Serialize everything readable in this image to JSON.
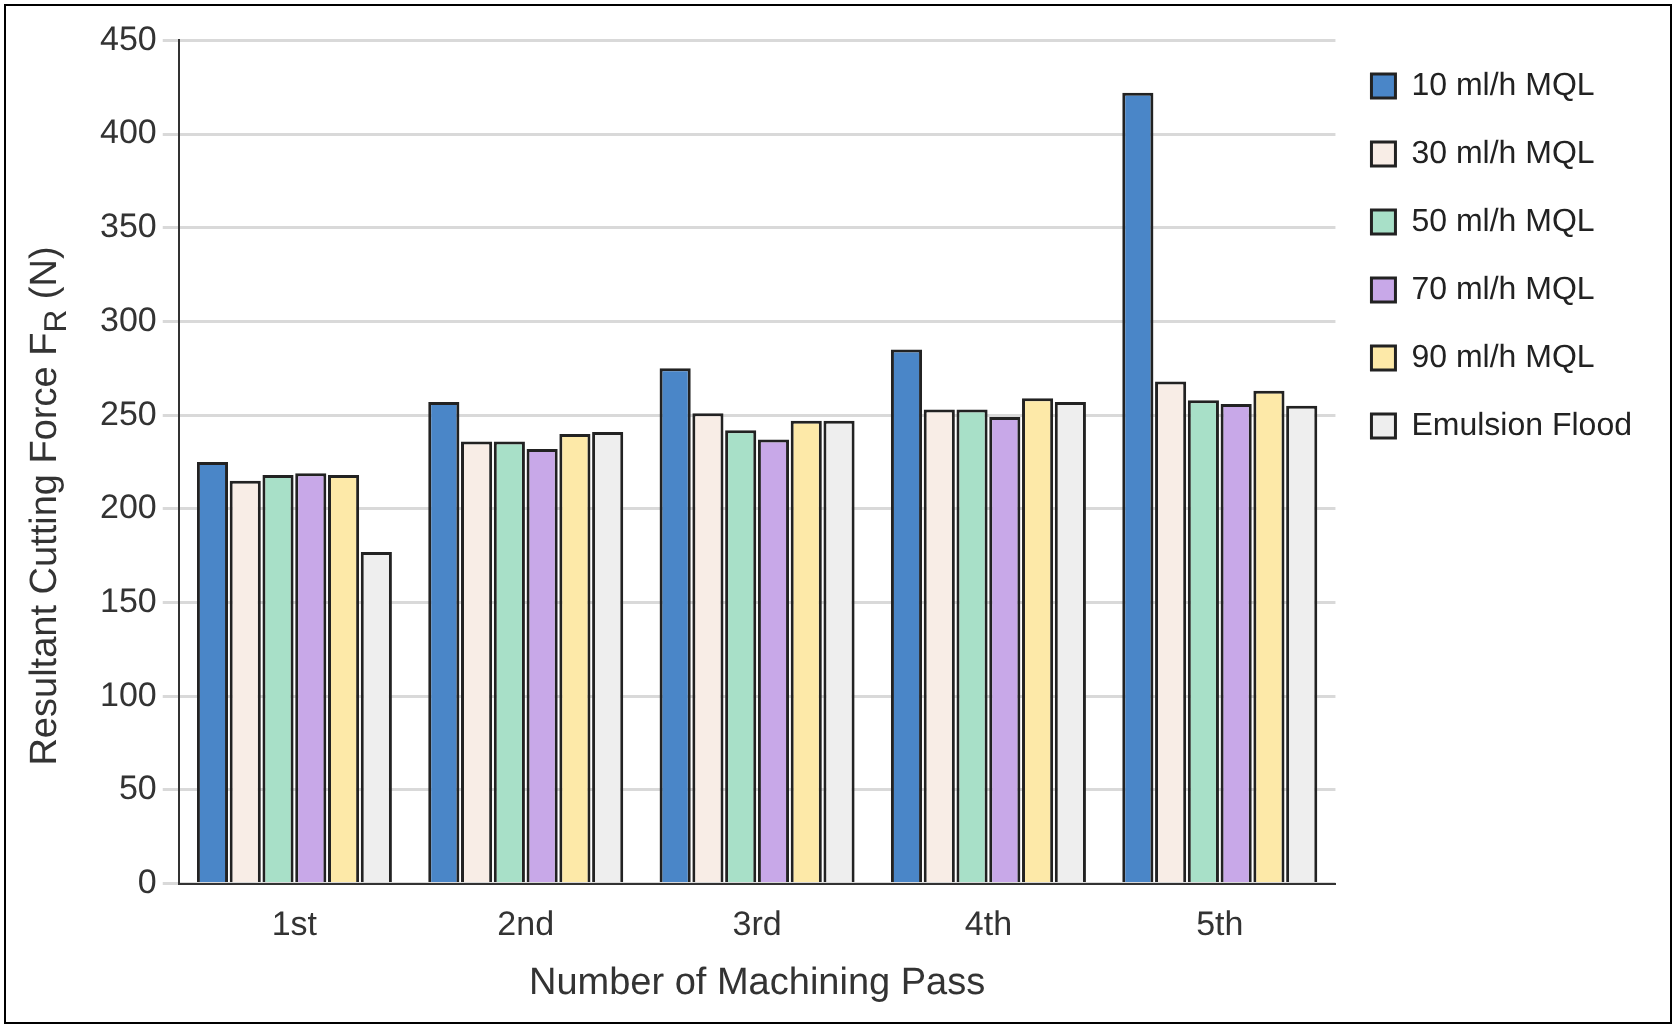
{
  "chart_data": {
    "type": "bar",
    "xlabel": "Number of Machining Pass",
    "ylabel": "Resultant Cutting Force F$_{R}$ (N)",
    "categories": [
      "1st",
      "2nd",
      "3rd",
      "4th",
      "5th"
    ],
    "series": [
      {
        "name": "10 ml/h MQL",
        "color": "#4a86c8",
        "values": [
          225,
          257,
          275,
          285,
          422
        ]
      },
      {
        "name": "30 ml/h MQL",
        "color": "#f8ede6",
        "values": [
          215,
          236,
          251,
          253,
          268
        ]
      },
      {
        "name": "50 ml/h MQL",
        "color": "#a8e0c8",
        "values": [
          218,
          236,
          242,
          253,
          258
        ]
      },
      {
        "name": "70 ml/h MQL",
        "color": "#c8a8e8",
        "values": [
          219,
          232,
          237,
          249,
          256
        ]
      },
      {
        "name": "90 ml/h MQL",
        "color": "#fde9a8",
        "values": [
          218,
          240,
          247,
          259,
          263
        ]
      },
      {
        "name": "Emulsion Flood",
        "color": "#eeeeee",
        "values": [
          177,
          241,
          247,
          257,
          255
        ]
      }
    ],
    "ylim": [
      0,
      450
    ],
    "yticks": [
      0,
      50,
      100,
      150,
      200,
      250,
      300,
      350,
      400,
      450
    ],
    "grid": "y",
    "legend": "right"
  }
}
